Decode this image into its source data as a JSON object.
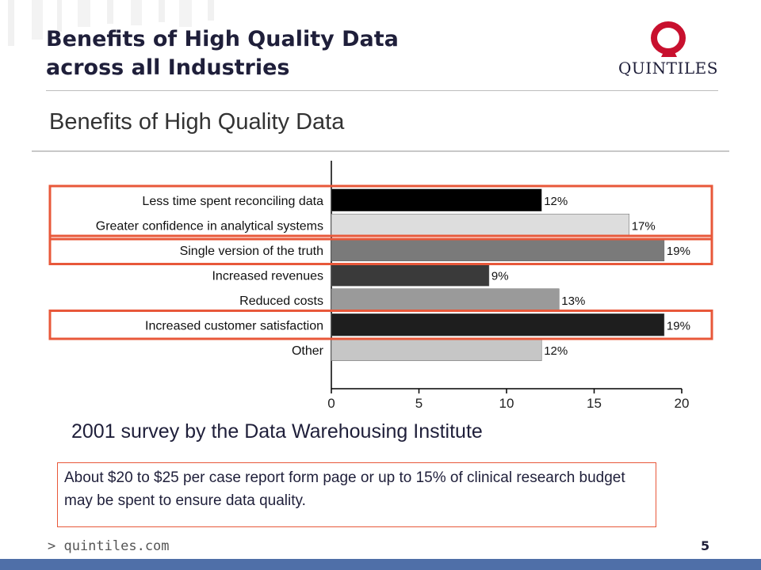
{
  "slide": {
    "title_line1": "Benefits of High Quality Data",
    "title_line2": "across all Industries",
    "logo_text": "QUINTILES",
    "survey_caption": "2001 survey by the Data Warehousing Institute",
    "callout_text": "About $20 to $25 per case report form page or up to 15% of clinical research budget may be spent to ensure data quality.",
    "website": "> quintiles.com",
    "page_number": "5"
  },
  "colors": {
    "title": "#1f1f3a",
    "highlight": "#e8583a",
    "logo_red": "#c8102e",
    "footer_bar": "#4f6fa8"
  },
  "chart_data": {
    "type": "bar",
    "orientation": "horizontal",
    "title": "Benefits of High Quality Data",
    "categories": [
      "Less time spent reconciling data",
      "Greater confidence in analytical systems",
      "Single version of the truth",
      "Increased revenues",
      "Reduced costs",
      "Increased customer satisfaction",
      "Other"
    ],
    "values": [
      12,
      17,
      19,
      9,
      13,
      19,
      12
    ],
    "value_labels": [
      "12%",
      "17%",
      "19%",
      "9%",
      "13%",
      "19%",
      "12%"
    ],
    "bar_colors": [
      "#000000",
      "#dddddd",
      "#7a7a7a",
      "#3a3a3a",
      "#9a9a9a",
      "#1e1e1e",
      "#c6c6c6"
    ],
    "xlim": [
      0,
      20
    ],
    "xticks": [
      0,
      5,
      10,
      15,
      20
    ],
    "highlight_groups": [
      [
        0,
        1
      ],
      [
        2
      ],
      [
        5
      ]
    ],
    "xlabel": "",
    "ylabel": ""
  }
}
